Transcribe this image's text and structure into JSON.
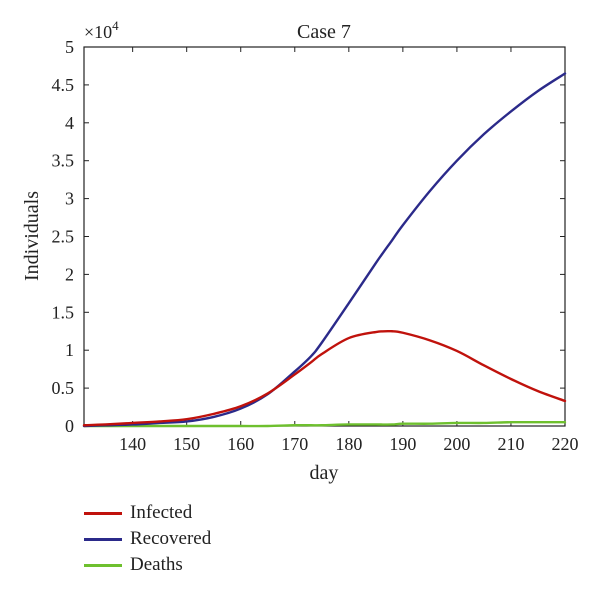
{
  "chart_data": {
    "type": "line",
    "title": "Case 7",
    "xlabel": "day",
    "ylabel": "Individuals",
    "y_multiplier_label": "×10",
    "y_multiplier_exponent": "4",
    "xlim": [
      131,
      220
    ],
    "ylim": [
      0,
      5
    ],
    "xticks": [
      "140",
      "150",
      "160",
      "170",
      "180",
      "190",
      "200",
      "210",
      "220"
    ],
    "yticks": [
      "0",
      "0.5",
      "1",
      "1.5",
      "2",
      "2.5",
      "3",
      "3.5",
      "4",
      "4.5",
      "5"
    ],
    "x": [
      131,
      135,
      140,
      145,
      150,
      155,
      160,
      165,
      170,
      173,
      175,
      180,
      185,
      188,
      190,
      195,
      200,
      205,
      210,
      215,
      220
    ],
    "series": [
      {
        "name": "Infected",
        "color": "#c0120c",
        "values": [
          0.01,
          0.02,
          0.04,
          0.06,
          0.09,
          0.16,
          0.26,
          0.43,
          0.68,
          0.84,
          0.95,
          1.16,
          1.24,
          1.25,
          1.23,
          1.13,
          0.99,
          0.8,
          0.62,
          0.46,
          0.33
        ]
      },
      {
        "name": "Recovered",
        "color": "#2b2a8a",
        "values": [
          0.0,
          0.01,
          0.02,
          0.04,
          0.06,
          0.12,
          0.23,
          0.42,
          0.72,
          0.92,
          1.1,
          1.62,
          2.15,
          2.45,
          2.65,
          3.1,
          3.5,
          3.85,
          4.15,
          4.42,
          4.65
        ]
      },
      {
        "name": "Deaths",
        "color": "#6ec02e",
        "values": [
          0.0,
          0.0,
          0.0,
          0.0,
          0.0,
          0.0,
          0.0,
          0.0,
          0.01,
          0.01,
          0.01,
          0.02,
          0.02,
          0.02,
          0.03,
          0.03,
          0.04,
          0.04,
          0.05,
          0.05,
          0.05
        ]
      }
    ],
    "grid": false,
    "legend_position": "below"
  }
}
